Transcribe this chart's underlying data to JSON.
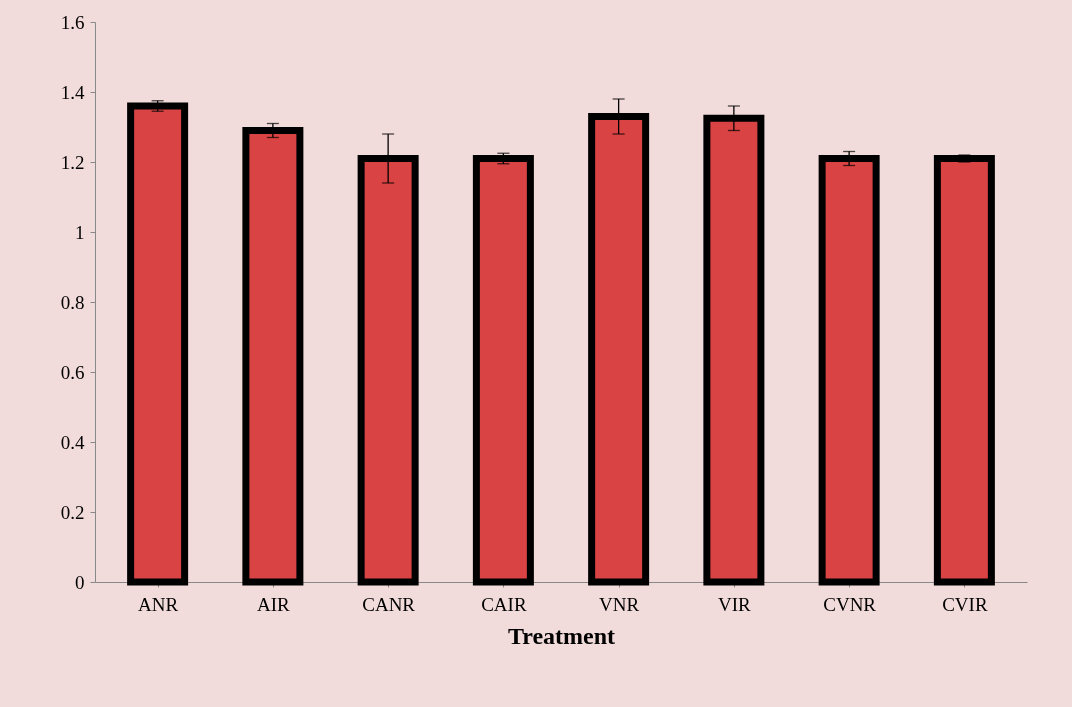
{
  "chart_data": {
    "type": "bar",
    "xlabel": "Treatment",
    "categories": [
      "ANR",
      "AIR",
      "CANR",
      "CAIR",
      "VNR",
      "VIR",
      "CVNR",
      "CVIR"
    ],
    "values": [
      1.36,
      1.29,
      1.21,
      1.21,
      1.33,
      1.325,
      1.21,
      1.21
    ],
    "errors": [
      0.015,
      0.02,
      0.07,
      0.015,
      0.05,
      0.035,
      0.02,
      0.01
    ],
    "color": "#d94343",
    "ylim": [
      0,
      1.6
    ],
    "yticks": [
      0,
      0.2,
      0.4,
      0.6,
      0.8,
      1,
      1.2,
      1.4,
      1.6
    ]
  }
}
